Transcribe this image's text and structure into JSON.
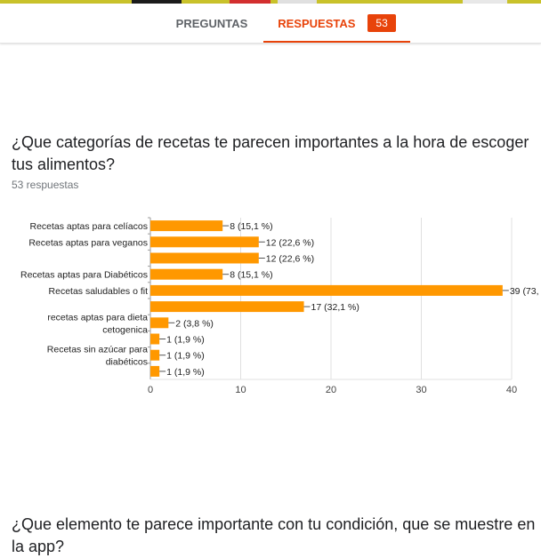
{
  "tabs": {
    "preguntas": "PREGUNTAS",
    "respuestas": "RESPUESTAS",
    "respuestas_count": "53"
  },
  "colors": {
    "accent": "#e8430a",
    "bar": "#ff9800",
    "grid": "#e0e0e0"
  },
  "question1": {
    "title": "¿Que categorías de recetas te parecen importantes a la hora de escoger tus alimentos?",
    "subtitle": "53 respuestas"
  },
  "question2": {
    "title": "¿Que elemento te parece importante con tu condición, que se muestre en la app?"
  },
  "chart_data": {
    "type": "bar",
    "orientation": "horizontal",
    "categories": [
      "Recetas aptas para celíacos",
      "Recetas aptas para veganos",
      "",
      "Recetas aptas para Diabéticos",
      "Recetas saludables o fit",
      "",
      "recetas aptas para dieta cetogenica",
      "",
      "Recetas sin azúcar para diabéticos",
      ""
    ],
    "values": [
      8,
      12,
      12,
      8,
      39,
      17,
      2,
      1,
      1,
      1
    ],
    "data_labels": [
      "8 (15,1 %)",
      "12 (22,6 %)",
      "12 (22,6 %)",
      "8 (15,1 %)",
      "39 (73,",
      "17 (32,1 %)",
      "2 (3,8 %)",
      "1 (1,9 %)",
      "1 (1,9 %)",
      "1 (1,9 %)"
    ],
    "xticks": [
      "0",
      "10",
      "20",
      "30",
      "40"
    ],
    "xlim": [
      0,
      40
    ],
    "grid": true,
    "legend": "none"
  }
}
